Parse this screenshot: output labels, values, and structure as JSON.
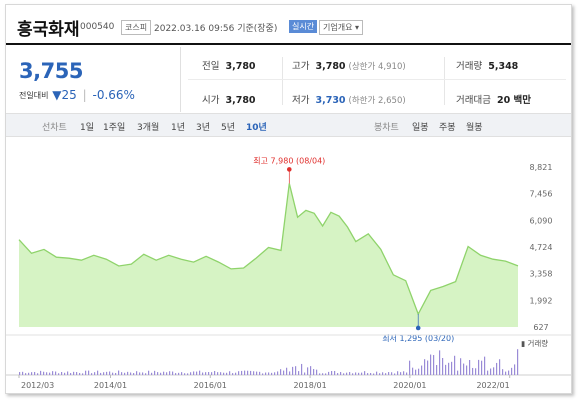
{
  "header": {
    "company_name": "흥국화재",
    "stock_code": "000540",
    "market_badge": "코스피",
    "datetime": "2022.03.16 09:56 기준(장중)",
    "realtime_badge": "실시간",
    "company_overview_button": "기업개요 ▾"
  },
  "quote": {
    "current_price": "3,755",
    "change_label": "전일대비",
    "change_arrow": "▼",
    "change_amount": "25",
    "change_percent": "-0.66%",
    "prev_close": {
      "label": "전일",
      "value": "3,780"
    },
    "high": {
      "label": "고가",
      "value": "3,780",
      "sub": "(상한가 4,910)"
    },
    "volume": {
      "label": "거래량",
      "value": "5,348"
    },
    "open": {
      "label": "시가",
      "value": "3,780"
    },
    "low": {
      "label": "저가",
      "value": "3,730",
      "sub": "(하한가 2,650)"
    },
    "trade_value": {
      "label": "거래대금",
      "value": "20 백만"
    }
  },
  "toolbar": {
    "line_chart_label": "선차트",
    "periods": [
      "1일",
      "1주일",
      "3개월",
      "1년",
      "3년",
      "5년",
      "10년"
    ],
    "active_period": "10년",
    "candle_chart_label": "봉차트",
    "candle_periods": [
      "일봉",
      "주봉",
      "월봉"
    ]
  },
  "chart_data": {
    "type": "area",
    "x": [
      "2012/03",
      "2012/06",
      "2012/09",
      "2012/12",
      "2013/03",
      "2013/06",
      "2013/09",
      "2013/12",
      "2014/03",
      "2014/06",
      "2014/09",
      "2014/12",
      "2015/03",
      "2015/06",
      "2015/09",
      "2015/12",
      "2016/03",
      "2016/06",
      "2016/09",
      "2016/12",
      "2017/03",
      "2017/06",
      "2017/08",
      "2017/10",
      "2017/12",
      "2018/02",
      "2018/04",
      "2018/06",
      "2018/08",
      "2018/10",
      "2018/12",
      "2019/03",
      "2019/06",
      "2019/09",
      "2019/12",
      "2020/03",
      "2020/06",
      "2020/09",
      "2020/12",
      "2021/03",
      "2021/06",
      "2021/09",
      "2021/12",
      "2022/03"
    ],
    "y": [
      5100,
      4400,
      4600,
      4200,
      4150,
      4050,
      4300,
      4100,
      3750,
      3850,
      4350,
      4050,
      4300,
      4100,
      3950,
      4250,
      3950,
      3600,
      3650,
      4150,
      4700,
      4550,
      7980,
      6250,
      6600,
      6450,
      5800,
      6500,
      6300,
      5750,
      5000,
      5400,
      4600,
      3300,
      3000,
      1295,
      2500,
      2700,
      2950,
      4750,
      4300,
      4100,
      4000,
      3755
    ],
    "xlabel": "",
    "ylabel": "",
    "y_ticks": [
      "8,821",
      "7,456",
      "6,090",
      "4,724",
      "3,358",
      "1,992",
      "627"
    ],
    "ylim": [
      627,
      8821
    ],
    "x_ticks": [
      "2012/03",
      "2014/01",
      "2016/01",
      "2018/01",
      "2020/01",
      "2022/01"
    ],
    "annotations": {
      "max_label": "최고 7,980 (08/04)",
      "max_value": 7980,
      "min_label": "최저 1,295 (03/20)",
      "min_value": 1295
    },
    "volume_label": "▮ 거래량",
    "grid": false,
    "line_color": "#8fd36b",
    "fill_color": "#d6f3c4",
    "max_color": "#e0302e",
    "min_color": "#2b64b8",
    "volume_color": "#9a8bd6"
  }
}
